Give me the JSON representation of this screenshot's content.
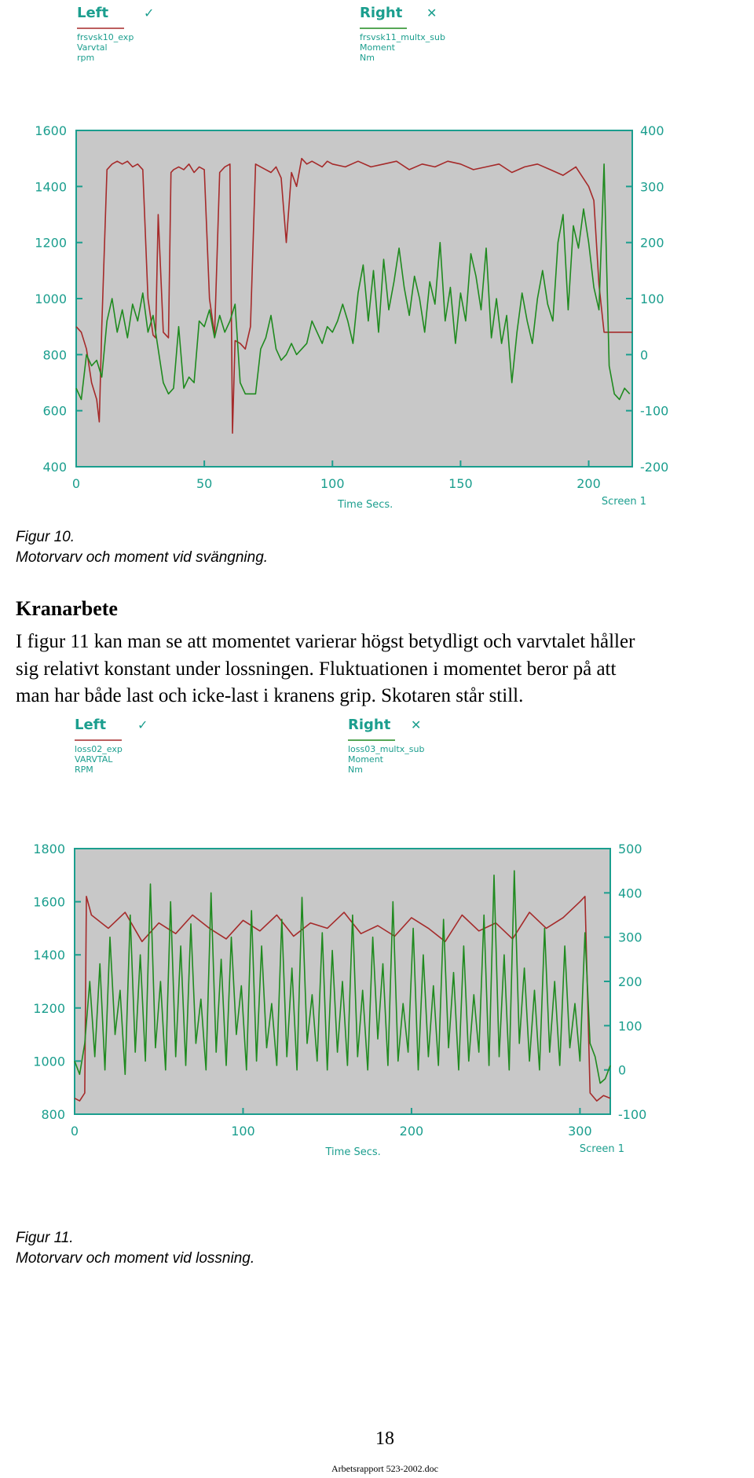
{
  "figure1": {
    "caption_label": "Figur 10.",
    "caption_text": "Motorvarv och moment vid svängning."
  },
  "section": {
    "heading": "Kranarbete",
    "paragraph_lines": [
      "I figur 11 kan man se att momentet varierar högst betydligt och varvtalet håller",
      "sig relativt konstant under lossningen. Fluktuationen i momentet beror på att",
      "man har både last och icke-last i kranens grip. Skotaren står still."
    ]
  },
  "figure2": {
    "caption_label": "Figur 11.",
    "caption_text": "Motorvarv och moment vid lossning."
  },
  "page_number": "18",
  "footer": "Arbetsrapport 523-2002.doc",
  "colors": {
    "plot_bg": "#c8c8c8",
    "axis_teal": "#1b9e8e",
    "left_series": "#a52a2a",
    "right_series": "#1f8a1f"
  },
  "chart_data": [
    {
      "type": "line",
      "legend_left": {
        "title": "Left",
        "mark": "✓",
        "name": "frsvsk10_exp",
        "quantity": "Varvtal",
        "unit": "rpm"
      },
      "legend_right": {
        "title": "Right",
        "mark": "✕",
        "name": "frsvsk11_multx_sub",
        "quantity": "Moment",
        "unit": "Nm"
      },
      "xlabel": "Time Secs.",
      "screen_label": "Screen 1",
      "xlim": [
        0,
        217
      ],
      "ylim_left": [
        400,
        1600
      ],
      "ylim_right": [
        -200,
        400
      ],
      "x_ticks": [
        "0",
        "50",
        "100",
        "150",
        "200"
      ],
      "y_left_ticks": [
        "400",
        "600",
        "800",
        "1000",
        "1200",
        "1400",
        "1600"
      ],
      "y_right_ticks": [
        "-200",
        "-100",
        "0",
        "100",
        "200",
        "300",
        "400"
      ],
      "series": [
        {
          "name": "frsvsk10_exp",
          "axis": "left",
          "x": [
            0,
            2,
            4,
            6,
            8,
            9,
            10,
            12,
            14,
            16,
            18,
            20,
            22,
            24,
            26,
            28,
            30,
            31,
            32,
            34,
            36,
            37,
            38,
            40,
            42,
            44,
            46,
            48,
            50,
            52,
            54,
            56,
            58,
            60,
            61,
            62,
            64,
            66,
            68,
            70,
            72,
            74,
            76,
            78,
            80,
            82,
            84,
            86,
            88,
            90,
            92,
            94,
            96,
            98,
            100,
            105,
            110,
            115,
            120,
            125,
            130,
            135,
            140,
            145,
            150,
            155,
            160,
            165,
            170,
            175,
            180,
            185,
            190,
            195,
            200,
            202,
            204,
            206,
            208,
            210,
            212,
            215,
            217
          ],
          "values": [
            900,
            880,
            820,
            700,
            640,
            560,
            900,
            1460,
            1480,
            1490,
            1480,
            1490,
            1470,
            1480,
            1460,
            1000,
            870,
            860,
            1300,
            880,
            860,
            1450,
            1460,
            1470,
            1460,
            1480,
            1450,
            1470,
            1460,
            1000,
            870,
            1450,
            1470,
            1480,
            520,
            850,
            840,
            820,
            900,
            1480,
            1470,
            1460,
            1450,
            1470,
            1430,
            1200,
            1450,
            1400,
            1500,
            1480,
            1490,
            1480,
            1470,
            1490,
            1480,
            1470,
            1490,
            1470,
            1480,
            1490,
            1460,
            1480,
            1470,
            1490,
            1480,
            1460,
            1470,
            1480,
            1450,
            1470,
            1480,
            1460,
            1440,
            1470,
            1400,
            1350,
            1050,
            880,
            880,
            880,
            880,
            880,
            880
          ]
        },
        {
          "name": "frsvsk11_multx_sub",
          "axis": "right",
          "x": [
            0,
            2,
            4,
            6,
            8,
            10,
            12,
            14,
            16,
            18,
            20,
            22,
            24,
            26,
            28,
            30,
            32,
            34,
            36,
            38,
            40,
            42,
            44,
            46,
            48,
            50,
            52,
            54,
            56,
            58,
            60,
            62,
            64,
            66,
            68,
            70,
            72,
            74,
            76,
            78,
            80,
            82,
            84,
            86,
            88,
            90,
            92,
            94,
            96,
            98,
            100,
            102,
            104,
            106,
            108,
            110,
            112,
            114,
            116,
            118,
            120,
            122,
            124,
            126,
            128,
            130,
            132,
            134,
            136,
            138,
            140,
            142,
            144,
            146,
            148,
            150,
            152,
            154,
            156,
            158,
            160,
            162,
            164,
            166,
            168,
            170,
            172,
            174,
            176,
            178,
            180,
            182,
            184,
            186,
            188,
            190,
            192,
            194,
            196,
            198,
            200,
            202,
            204,
            206,
            208,
            210,
            212,
            214,
            216
          ],
          "values": [
            -60,
            -80,
            0,
            -20,
            -10,
            -40,
            60,
            100,
            40,
            80,
            30,
            90,
            60,
            110,
            40,
            70,
            10,
            -50,
            -70,
            -60,
            50,
            -60,
            -40,
            -50,
            60,
            50,
            80,
            30,
            70,
            40,
            60,
            90,
            -50,
            -70,
            -70,
            -70,
            10,
            30,
            70,
            10,
            -10,
            0,
            20,
            0,
            10,
            20,
            60,
            40,
            20,
            50,
            40,
            60,
            90,
            60,
            20,
            110,
            160,
            60,
            150,
            40,
            170,
            80,
            130,
            190,
            120,
            70,
            140,
            100,
            40,
            130,
            90,
            200,
            60,
            120,
            20,
            110,
            60,
            180,
            140,
            80,
            190,
            30,
            100,
            20,
            70,
            -50,
            40,
            110,
            60,
            20,
            100,
            150,
            90,
            60,
            200,
            250,
            80,
            230,
            190,
            260,
            200,
            120,
            80,
            340,
            -20,
            -70,
            -80,
            -60,
            -70
          ]
        }
      ]
    },
    {
      "type": "line",
      "legend_left": {
        "title": "Left",
        "mark": "✓",
        "name": "loss02_exp",
        "quantity": "VARVTAL",
        "unit": "RPM"
      },
      "legend_right": {
        "title": "Right",
        "mark": "✕",
        "name": "loss03_multx_sub",
        "quantity": "Moment",
        "unit": "Nm"
      },
      "xlabel": "Time Secs.",
      "screen_label": "Screen 1",
      "xlim": [
        0,
        318
      ],
      "ylim_left": [
        800,
        1800
      ],
      "ylim_right": [
        -100,
        500
      ],
      "x_ticks": [
        "0",
        "100",
        "200",
        "300"
      ],
      "y_left_ticks": [
        "800",
        "1000",
        "1200",
        "1400",
        "1600",
        "1800"
      ],
      "y_right_ticks": [
        "-100",
        "0",
        "100",
        "200",
        "300",
        "400",
        "500"
      ],
      "series": [
        {
          "name": "loss02_exp",
          "axis": "left",
          "x": [
            0,
            3,
            6,
            7,
            10,
            20,
            30,
            40,
            50,
            60,
            70,
            80,
            90,
            100,
            110,
            120,
            130,
            140,
            150,
            160,
            170,
            180,
            190,
            200,
            210,
            220,
            230,
            240,
            250,
            260,
            270,
            280,
            290,
            300,
            303,
            306,
            310,
            314,
            318
          ],
          "values": [
            860,
            850,
            880,
            1620,
            1550,
            1500,
            1560,
            1450,
            1520,
            1480,
            1550,
            1500,
            1460,
            1530,
            1490,
            1550,
            1470,
            1520,
            1500,
            1560,
            1480,
            1510,
            1470,
            1540,
            1500,
            1450,
            1550,
            1490,
            1520,
            1460,
            1560,
            1500,
            1540,
            1600,
            1620,
            880,
            850,
            870,
            860
          ]
        },
        {
          "name": "loss03_multx_sub",
          "axis": "right",
          "x": [
            0,
            3,
            6,
            9,
            12,
            15,
            18,
            21,
            24,
            27,
            30,
            33,
            36,
            39,
            42,
            45,
            48,
            51,
            54,
            57,
            60,
            63,
            66,
            69,
            72,
            75,
            78,
            81,
            84,
            87,
            90,
            93,
            96,
            99,
            102,
            105,
            108,
            111,
            114,
            117,
            120,
            123,
            126,
            129,
            132,
            135,
            138,
            141,
            144,
            147,
            150,
            153,
            156,
            159,
            162,
            165,
            168,
            171,
            174,
            177,
            180,
            183,
            186,
            189,
            192,
            195,
            198,
            201,
            204,
            207,
            210,
            213,
            216,
            219,
            222,
            225,
            228,
            231,
            234,
            237,
            240,
            243,
            246,
            249,
            252,
            255,
            258,
            261,
            264,
            267,
            270,
            273,
            276,
            279,
            282,
            285,
            288,
            291,
            294,
            297,
            300,
            303,
            306,
            309,
            312,
            315,
            318
          ],
          "values": [
            20,
            -10,
            60,
            200,
            30,
            240,
            0,
            300,
            80,
            180,
            -10,
            350,
            40,
            260,
            20,
            420,
            50,
            200,
            0,
            380,
            30,
            280,
            10,
            330,
            60,
            160,
            0,
            400,
            40,
            250,
            10,
            300,
            80,
            190,
            0,
            360,
            20,
            280,
            50,
            150,
            10,
            340,
            30,
            230,
            0,
            390,
            60,
            170,
            20,
            310,
            0,
            270,
            40,
            200,
            10,
            350,
            30,
            180,
            0,
            300,
            70,
            240,
            10,
            380,
            20,
            150,
            40,
            320,
            0,
            260,
            30,
            190,
            10,
            340,
            50,
            220,
            0,
            280,
            20,
            170,
            40,
            350,
            10,
            440,
            30,
            260,
            0,
            450,
            60,
            230,
            20,
            180,
            0,
            320,
            40,
            200,
            10,
            280,
            50,
            150,
            20,
            310,
            60,
            30,
            -30,
            -20,
            10
          ]
        }
      ]
    }
  ]
}
